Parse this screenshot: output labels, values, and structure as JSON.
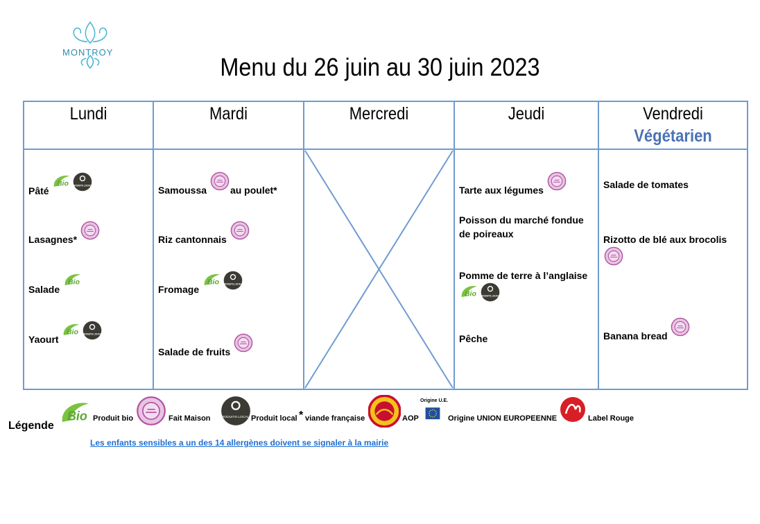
{
  "logo": {
    "name": "MONTROY"
  },
  "title": "Menu du 26 juin au 30 juin 2023",
  "days": [
    {
      "name": "Lundi",
      "items": [
        [
          {
            "text": "Pâté"
          },
          {
            "icon": 0
          },
          {
            "icon": 2
          }
        ],
        [
          {
            "text": "Lasagnes*"
          },
          {
            "icon": 1
          }
        ],
        [
          {
            "text": "Salade"
          },
          {
            "icon": 0
          }
        ],
        [
          {
            "text": "Yaourt"
          },
          {
            "icon": 0
          },
          {
            "icon": 2
          }
        ]
      ]
    },
    {
      "name": "Mardi",
      "items": [
        [
          {
            "text": "Samoussa"
          },
          {
            "icon": 1
          },
          {
            "text": "au poulet*"
          }
        ],
        [
          {
            "text": "Riz cantonnais"
          },
          {
            "icon": 1
          }
        ],
        [
          {
            "text": "Fromage"
          },
          {
            "icon": 0
          },
          {
            "icon": 2
          }
        ],
        [
          {
            "text": "Salade de fruits"
          },
          {
            "icon": 1
          }
        ]
      ]
    },
    {
      "name": "Mercredi",
      "items": []
    },
    {
      "name": "Jeudi",
      "items": [
        [
          {
            "text": "Tarte aux légumes"
          },
          {
            "icon": 1
          }
        ],
        [
          {
            "text": "Poisson du marché fondue de poireaux"
          }
        ],
        [
          {
            "text": "Pomme de terre à l’anglaise"
          },
          {
            "icon": 0
          },
          {
            "icon": 2
          }
        ],
        [
          {
            "text": "Pêche"
          }
        ]
      ]
    },
    {
      "name": "Vendredi",
      "subtitle": "Végétarien",
      "items": [
        [
          {
            "text": "Salade de tomates"
          }
        ],
        [
          {
            "text": "Rizotto de blé aux brocolis"
          },
          {
            "icon": 1
          }
        ],
        [
          {
            "text": "Banana bread"
          },
          {
            "icon": 1
          }
        ]
      ]
    }
  ],
  "legend": {
    "title": "Légende",
    "items": [
      {
        "badge": "Bio",
        "label": "Produit bio"
      },
      {
        "label": "Fait Maison"
      },
      {
        "badge": "PRODUITS LOCAUX",
        "label": "Produit local"
      },
      {
        "mark": "*",
        "label": "viande française"
      },
      {
        "label": "AOP"
      },
      {
        "badge": "Origine U.E.",
        "label": "Origine UNION EUROPEENNE"
      },
      {
        "label": "Label Rouge"
      }
    ]
  },
  "notice": "Les enfants sensibles a un des 14 allergènes doivent se signaler à la mairie"
}
